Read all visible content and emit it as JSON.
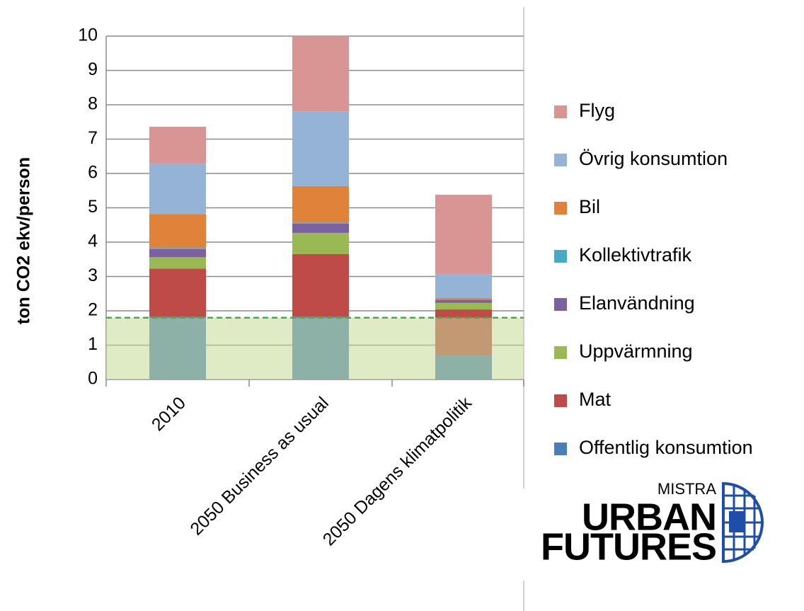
{
  "chart_data": {
    "type": "stacked_bar",
    "y_label": "ton CO2 ekv/person",
    "categories": [
      "2010",
      "2050 Business as usual",
      "2050 Dagens klimatpolitik"
    ],
    "series": [
      {
        "name": "Offentlig konsumtion",
        "color": "#4a7ebb",
        "values": [
          1.83,
          1.83,
          0.7
        ]
      },
      {
        "name": "Mat",
        "color": "#be4b48",
        "values": [
          1.4,
          1.82,
          1.34
        ]
      },
      {
        "name": "Uppvärmning",
        "color": "#98b954",
        "values": [
          0.33,
          0.62,
          0.19
        ]
      },
      {
        "name": "Elanvändning",
        "color": "#7d60a0",
        "values": [
          0.24,
          0.27,
          0.08
        ]
      },
      {
        "name": "Kollektivtrafik",
        "color": "#46aac5",
        "values": [
          0.03,
          0.03,
          0.02
        ]
      },
      {
        "name": "Bil",
        "color": "#e0823a",
        "values": [
          0.99,
          1.06,
          0.04
        ]
      },
      {
        "name": "Övrig konsumtion",
        "color": "#95b3d7",
        "values": [
          1.47,
          2.18,
          0.7
        ]
      },
      {
        "name": "Flyg",
        "color": "#d99594",
        "values": [
          1.07,
          2.19,
          2.31
        ]
      }
    ],
    "target_band": 1.8,
    "ylim": [
      0,
      10
    ],
    "yticks": [
      0,
      1,
      2,
      3,
      4,
      5,
      6,
      7,
      8,
      9,
      10
    ],
    "grid": true,
    "legend": "right",
    "logo": {
      "top": "MISTRA",
      "middle": "URBAN",
      "bottom": "FUTURES"
    }
  }
}
